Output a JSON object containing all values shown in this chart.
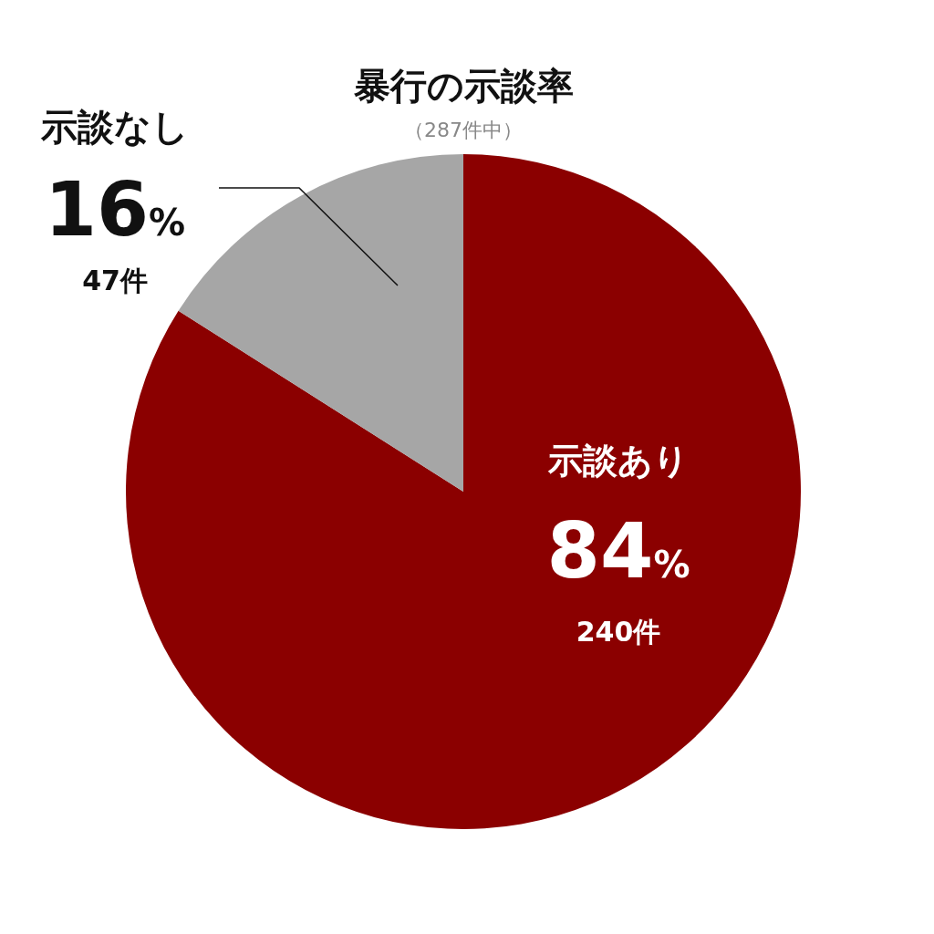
{
  "chart_data": {
    "type": "pie",
    "title": "暴行の示談率",
    "subtitle": "（287件中）",
    "categories": [
      "示談あり",
      "示談なし"
    ],
    "values": [
      84,
      16
    ],
    "colors": [
      "#8b0000",
      "#a6a6a6"
    ],
    "value_labels": [
      "84%",
      "16%"
    ],
    "annotations": [
      "240件",
      "47件"
    ]
  }
}
